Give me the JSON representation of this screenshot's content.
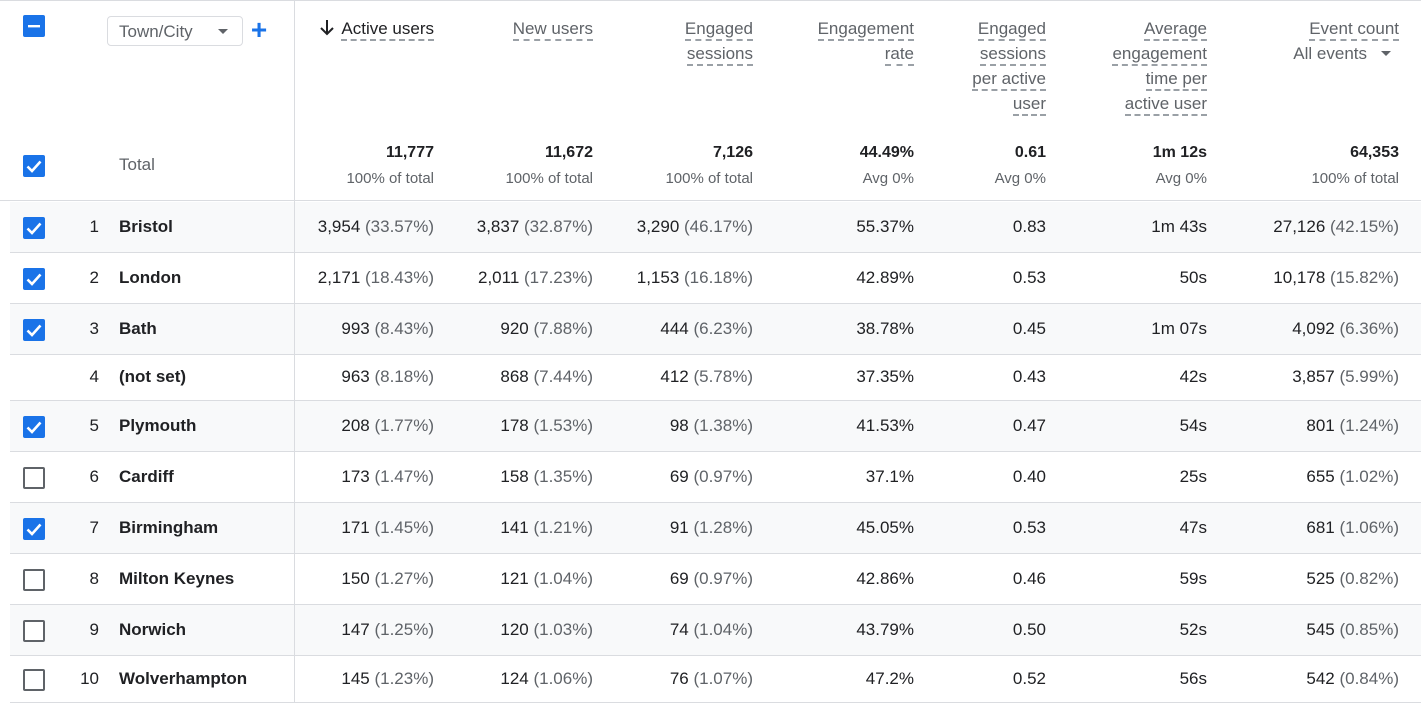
{
  "dimension": {
    "label": "Town/City",
    "add_label": "+"
  },
  "header_checkbox": "indeterminate",
  "columns": [
    {
      "id": "active_users",
      "lines": [
        "Active users"
      ],
      "sorted": "descending"
    },
    {
      "id": "new_users",
      "lines": [
        "New users"
      ]
    },
    {
      "id": "engaged_sessions",
      "lines": [
        "Engaged",
        "sessions"
      ]
    },
    {
      "id": "engagement_rate",
      "lines": [
        "Engagement",
        "rate"
      ]
    },
    {
      "id": "engaged_sessions_per_user",
      "lines": [
        "Engaged",
        "sessions",
        "per active",
        "user"
      ]
    },
    {
      "id": "avg_engagement_time",
      "lines": [
        "Average",
        "engagement",
        "time per",
        "active user"
      ]
    },
    {
      "id": "event_count",
      "lines": [
        "Event count"
      ],
      "selector": "All events"
    }
  ],
  "totals": {
    "label": "Total",
    "checked": true,
    "values": [
      {
        "value": "11,777",
        "sub": "100% of total"
      },
      {
        "value": "11,672",
        "sub": "100% of total"
      },
      {
        "value": "7,126",
        "sub": "100% of total"
      },
      {
        "value": "44.49%",
        "sub": "Avg 0%"
      },
      {
        "value": "0.61",
        "sub": "Avg 0%"
      },
      {
        "value": "1m 12s",
        "sub": "Avg 0%"
      },
      {
        "value": "64,353",
        "sub": "100% of total"
      }
    ]
  },
  "rows": [
    {
      "rank": "1",
      "city": "Bristol",
      "checked": true,
      "cells": [
        [
          "3,954",
          "(33.57%)"
        ],
        [
          "3,837",
          "(32.87%)"
        ],
        [
          "3,290",
          "(46.17%)"
        ],
        [
          "55.37%",
          ""
        ],
        [
          "0.83",
          ""
        ],
        [
          "1m 43s",
          ""
        ],
        [
          "27,126",
          "(42.15%)"
        ]
      ]
    },
    {
      "rank": "2",
      "city": "London",
      "checked": true,
      "cells": [
        [
          "2,171",
          "(18.43%)"
        ],
        [
          "2,011",
          "(17.23%)"
        ],
        [
          "1,153",
          "(16.18%)"
        ],
        [
          "42.89%",
          ""
        ],
        [
          "0.53",
          ""
        ],
        [
          "50s",
          ""
        ],
        [
          "10,178",
          "(15.82%)"
        ]
      ]
    },
    {
      "rank": "3",
      "city": "Bath",
      "checked": true,
      "cells": [
        [
          "993",
          "(8.43%)"
        ],
        [
          "920",
          "(7.88%)"
        ],
        [
          "444",
          "(6.23%)"
        ],
        [
          "38.78%",
          ""
        ],
        [
          "0.45",
          ""
        ],
        [
          "1m 07s",
          ""
        ],
        [
          "4,092",
          "(6.36%)"
        ]
      ]
    },
    {
      "rank": "4",
      "city": "(not set)",
      "checked": null,
      "cells": [
        [
          "963",
          "(8.18%)"
        ],
        [
          "868",
          "(7.44%)"
        ],
        [
          "412",
          "(5.78%)"
        ],
        [
          "37.35%",
          ""
        ],
        [
          "0.43",
          ""
        ],
        [
          "42s",
          ""
        ],
        [
          "3,857",
          "(5.99%)"
        ]
      ]
    },
    {
      "rank": "5",
      "city": "Plymouth",
      "checked": true,
      "cells": [
        [
          "208",
          "(1.77%)"
        ],
        [
          "178",
          "(1.53%)"
        ],
        [
          "98",
          "(1.38%)"
        ],
        [
          "41.53%",
          ""
        ],
        [
          "0.47",
          ""
        ],
        [
          "54s",
          ""
        ],
        [
          "801",
          "(1.24%)"
        ]
      ]
    },
    {
      "rank": "6",
      "city": "Cardiff",
      "checked": false,
      "cells": [
        [
          "173",
          "(1.47%)"
        ],
        [
          "158",
          "(1.35%)"
        ],
        [
          "69",
          "(0.97%)"
        ],
        [
          "37.1%",
          ""
        ],
        [
          "0.40",
          ""
        ],
        [
          "25s",
          ""
        ],
        [
          "655",
          "(1.02%)"
        ]
      ]
    },
    {
      "rank": "7",
      "city": "Birmingham",
      "checked": true,
      "cells": [
        [
          "171",
          "(1.45%)"
        ],
        [
          "141",
          "(1.21%)"
        ],
        [
          "91",
          "(1.28%)"
        ],
        [
          "45.05%",
          ""
        ],
        [
          "0.53",
          ""
        ],
        [
          "47s",
          ""
        ],
        [
          "681",
          "(1.06%)"
        ]
      ]
    },
    {
      "rank": "8",
      "city": "Milton Keynes",
      "checked": false,
      "cells": [
        [
          "150",
          "(1.27%)"
        ],
        [
          "121",
          "(1.04%)"
        ],
        [
          "69",
          "(0.97%)"
        ],
        [
          "42.86%",
          ""
        ],
        [
          "0.46",
          ""
        ],
        [
          "59s",
          ""
        ],
        [
          "525",
          "(0.82%)"
        ]
      ]
    },
    {
      "rank": "9",
      "city": "Norwich",
      "checked": false,
      "cells": [
        [
          "147",
          "(1.25%)"
        ],
        [
          "120",
          "(1.03%)"
        ],
        [
          "74",
          "(1.04%)"
        ],
        [
          "43.79%",
          ""
        ],
        [
          "0.50",
          ""
        ],
        [
          "52s",
          ""
        ],
        [
          "545",
          "(0.85%)"
        ]
      ]
    },
    {
      "rank": "10",
      "city": "Wolverhampton",
      "checked": false,
      "cells": [
        [
          "145",
          "(1.23%)"
        ],
        [
          "124",
          "(1.06%)"
        ],
        [
          "76",
          "(1.07%)"
        ],
        [
          "47.2%",
          ""
        ],
        [
          "0.52",
          ""
        ],
        [
          "56s",
          ""
        ],
        [
          "542",
          "(0.84%)"
        ]
      ]
    }
  ],
  "colors": {
    "accent": "#1a73e8",
    "border": "#dadce0",
    "muted": "#5f6368",
    "shaded_row": "#f8f9fa"
  }
}
